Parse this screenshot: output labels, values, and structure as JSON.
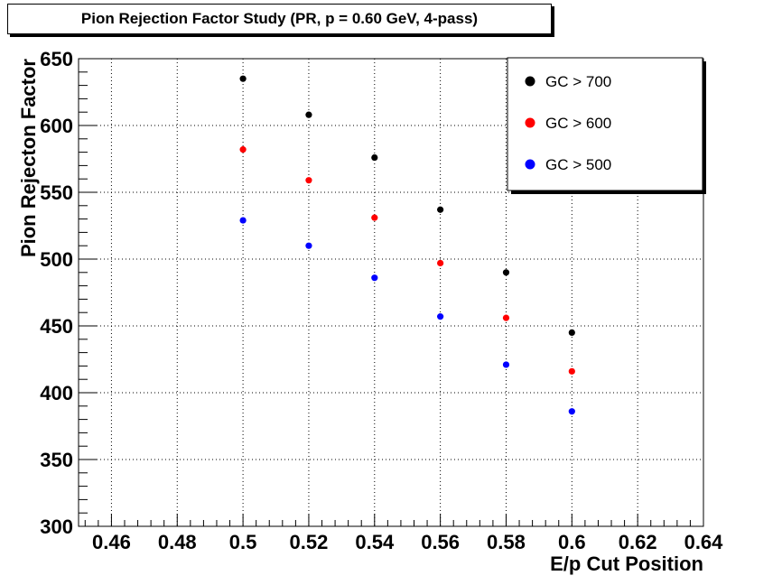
{
  "chart_data": {
    "type": "scatter",
    "title": "Pion Rejection Factor Study (PR, p = 0.60 GeV, 4-pass)",
    "xlabel": "E/p Cut Position",
    "ylabel": "Pion Rejecton Factor",
    "xlim": [
      0.45,
      0.64
    ],
    "ylim": [
      300,
      650
    ],
    "xticks": [
      0.46,
      0.48,
      0.5,
      0.52,
      0.54,
      0.56,
      0.58,
      0.6,
      0.62,
      0.64
    ],
    "xtick_labels": [
      "0.46",
      "0.48",
      "0.5",
      "0.52",
      "0.54",
      "0.56",
      "0.58",
      "0.6",
      "0.62",
      "0.64"
    ],
    "yticks": [
      300,
      350,
      400,
      450,
      500,
      550,
      600,
      650
    ],
    "ytick_labels": [
      "300",
      "350",
      "400",
      "450",
      "500",
      "550",
      "600",
      "650"
    ],
    "grid": true,
    "grid_style": "dotted",
    "legend_position": "top-right",
    "series": [
      {
        "name": "GC > 700",
        "color": "#000000",
        "x": [
          0.5,
          0.52,
          0.54,
          0.56,
          0.58,
          0.6
        ],
        "y": [
          635,
          608,
          576,
          537,
          490,
          445
        ]
      },
      {
        "name": "GC > 600",
        "color": "#ff0000",
        "x": [
          0.5,
          0.52,
          0.54,
          0.56,
          0.58,
          0.6
        ],
        "y": [
          582,
          559,
          531,
          497,
          456,
          416
        ]
      },
      {
        "name": "GC > 500",
        "color": "#0000ff",
        "x": [
          0.5,
          0.52,
          0.54,
          0.56,
          0.58,
          0.6
        ],
        "y": [
          529,
          510,
          486,
          457,
          421,
          386
        ]
      }
    ]
  }
}
